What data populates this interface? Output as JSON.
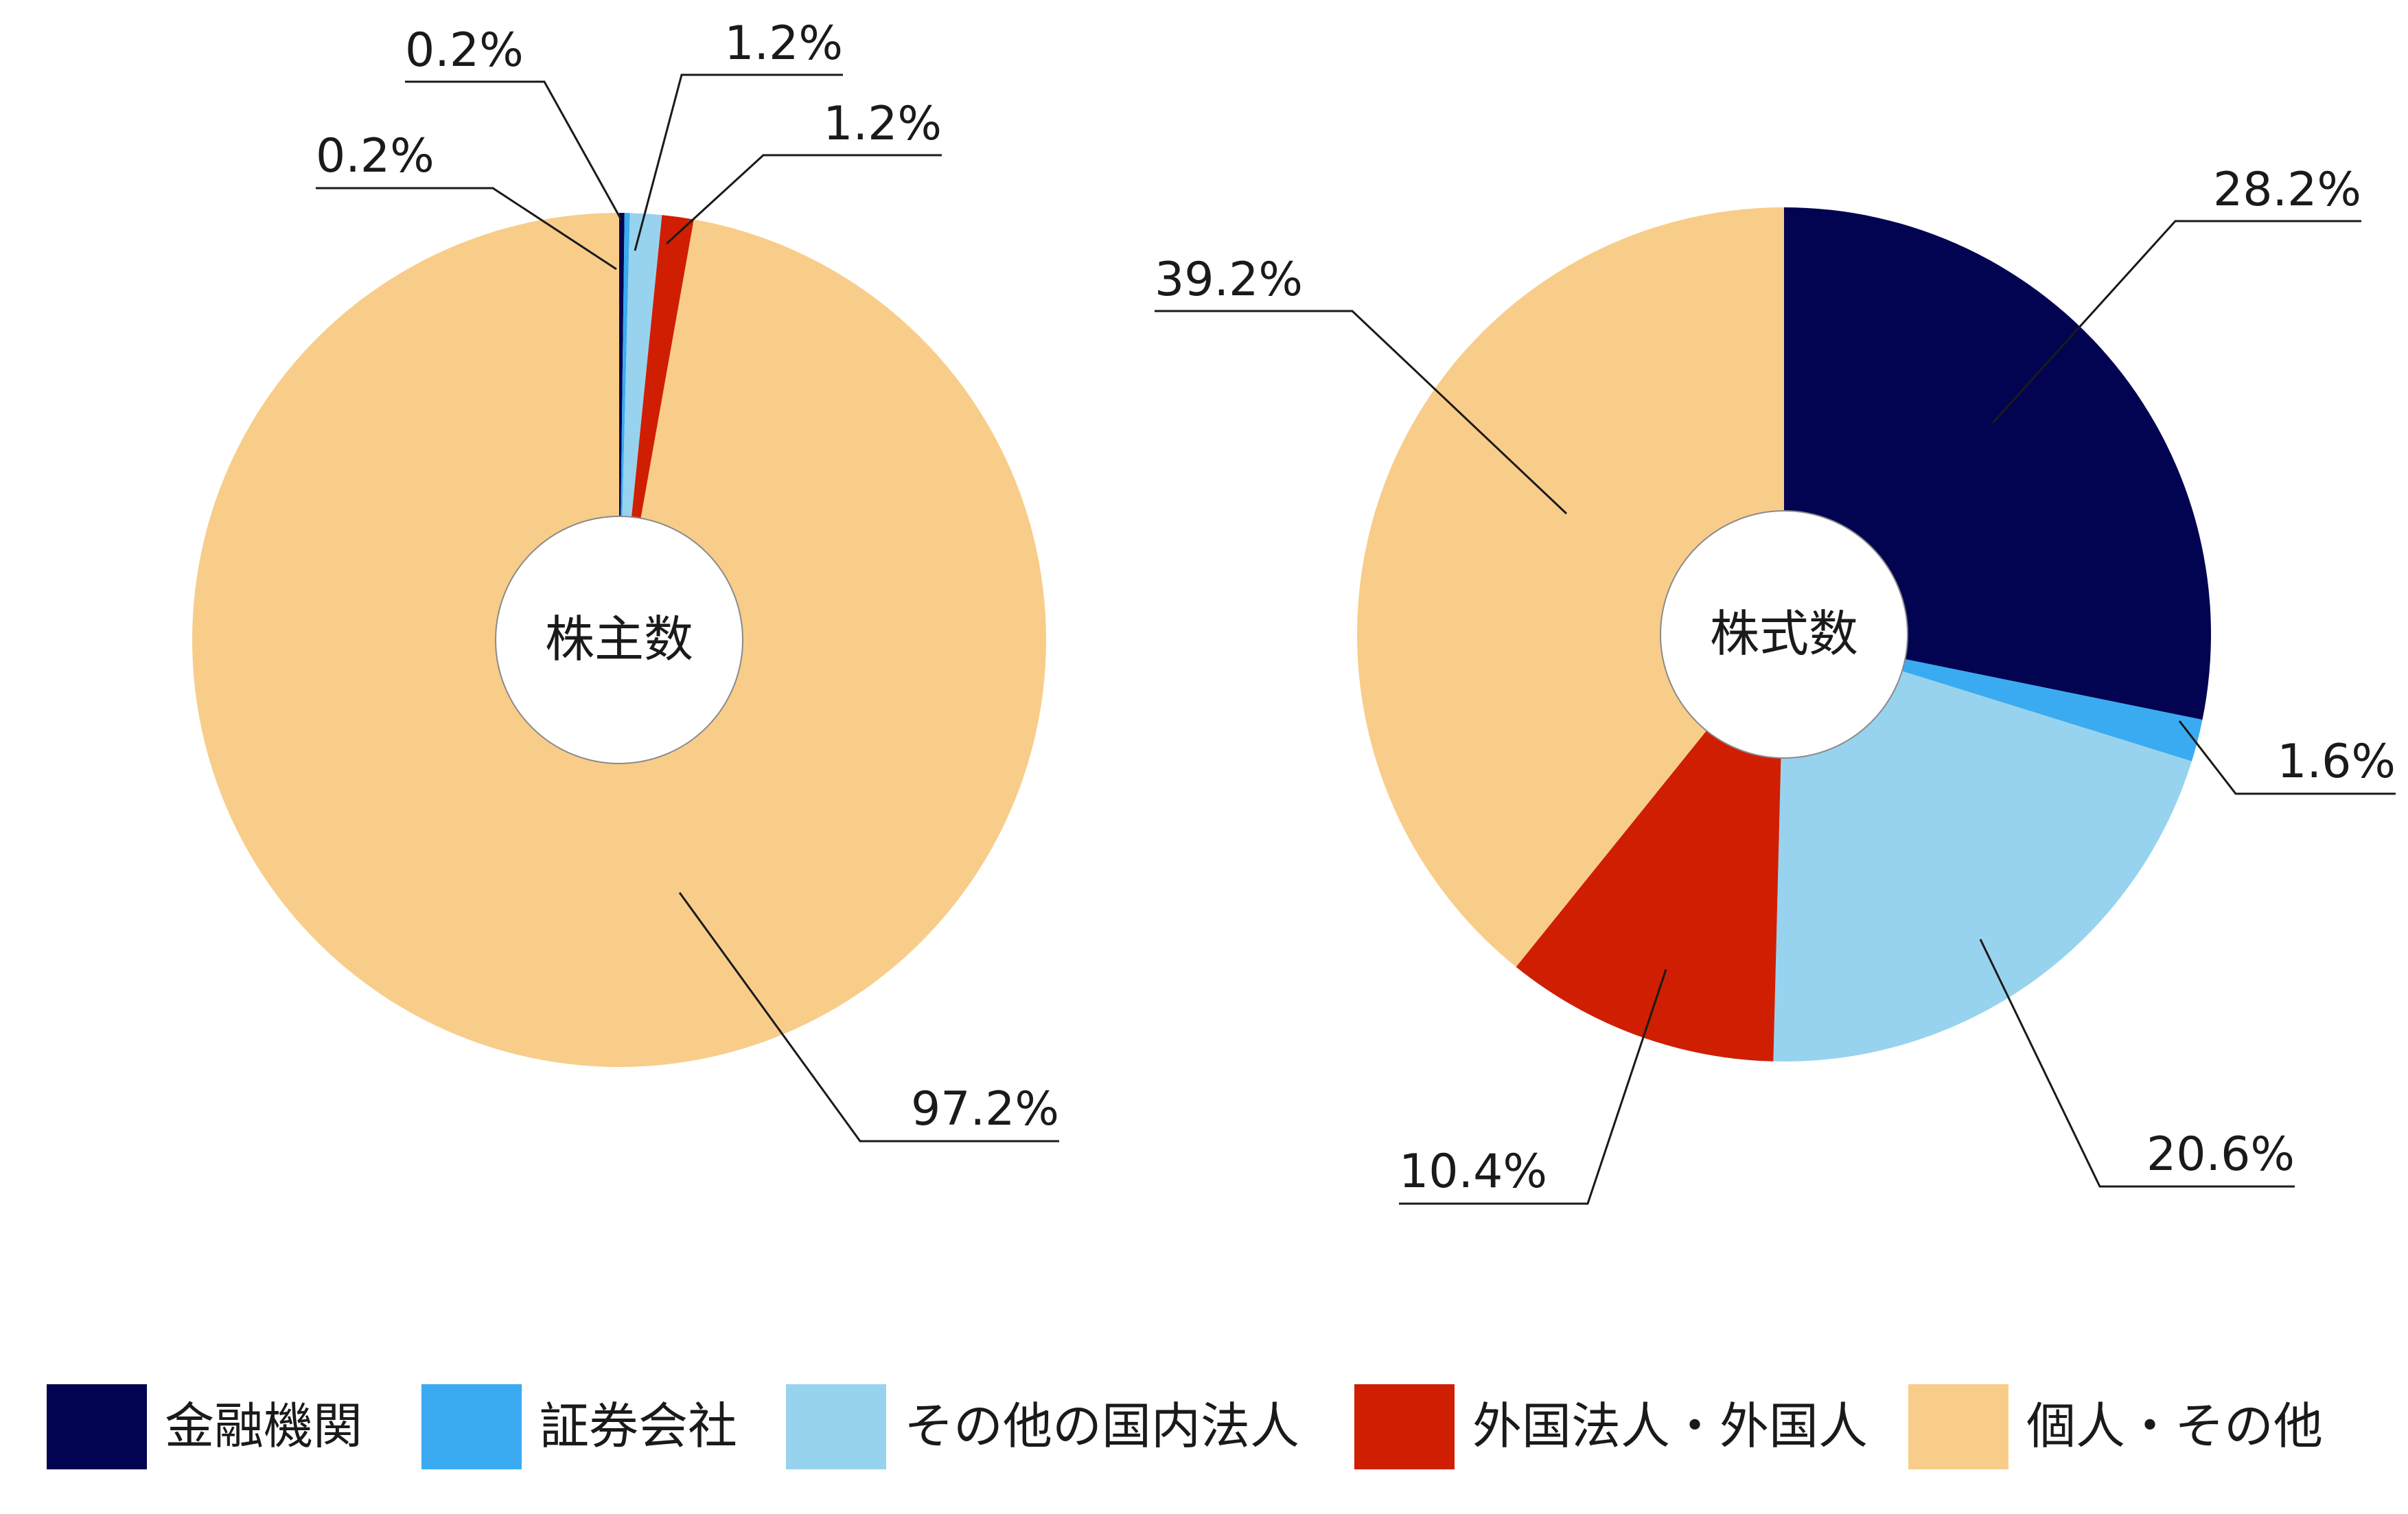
{
  "colors": {
    "financial": "#020452",
    "securities": "#3aabf1",
    "other_domestic": "#97d3ee",
    "foreign": "#d01e02",
    "individual": "#f8cd8a",
    "leader": "#1a1a1a",
    "center_fill": "#ffffff",
    "center_stroke": "#8a8a8a"
  },
  "legend": [
    {
      "label": "金融機関",
      "color_key": "financial"
    },
    {
      "label": "証券会社",
      "color_key": "securities"
    },
    {
      "label": "その他の国内法人",
      "color_key": "other_domestic"
    },
    {
      "label": "外国法人・外国人",
      "color_key": "foreign"
    },
    {
      "label": "個人・その他",
      "color_key": "individual"
    }
  ],
  "chart_data": [
    {
      "type": "pie",
      "center_label": "株主数",
      "categories": [
        "金融機関",
        "証券会社",
        "その他の国内法人",
        "外国法人・外国人",
        "個人・その他"
      ],
      "values": [
        0.2,
        0.2,
        1.2,
        1.2,
        97.2
      ],
      "labels": [
        "0.2%",
        "0.2%",
        "1.2%",
        "1.2%",
        "97.2%"
      ],
      "colors": [
        "#020452",
        "#3aabf1",
        "#97d3ee",
        "#d01e02",
        "#f8cd8a"
      ]
    },
    {
      "type": "pie",
      "center_label": "株式数",
      "categories": [
        "金融機関",
        "証券会社",
        "その他の国内法人",
        "外国法人・外国人",
        "個人・その他"
      ],
      "values": [
        28.2,
        1.6,
        20.6,
        10.4,
        39.2
      ],
      "labels": [
        "28.2%",
        "1.6%",
        "20.6%",
        "10.4%",
        "39.2%"
      ],
      "colors": [
        "#020452",
        "#3aabf1",
        "#97d3ee",
        "#d01e02",
        "#f8cd8a"
      ]
    }
  ]
}
